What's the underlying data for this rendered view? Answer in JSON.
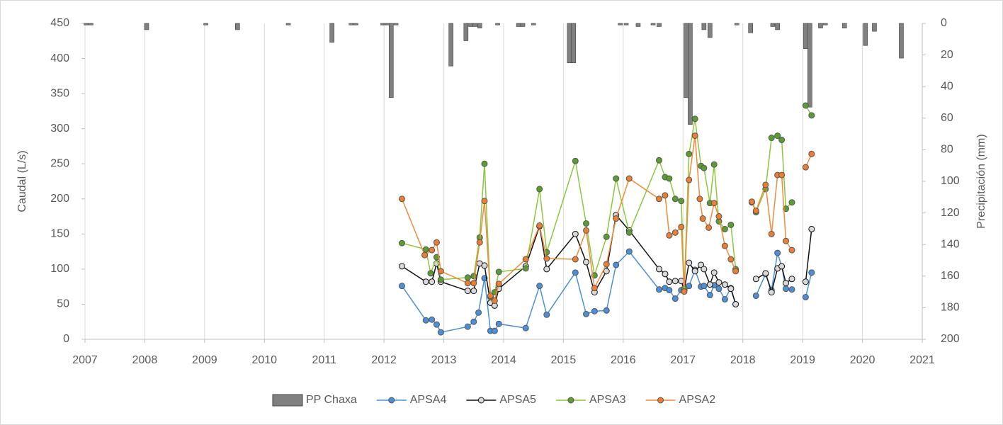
{
  "chart_data": {
    "type": "line",
    "y_label": "Caudal (L/s)",
    "y2_label": "Precipitación (mm)",
    "xlim": [
      2007,
      2021
    ],
    "xticks": [
      2007,
      2008,
      2009,
      2010,
      2011,
      2012,
      2013,
      2014,
      2015,
      2016,
      2017,
      2018,
      2019,
      2020,
      2021
    ],
    "ylim": [
      0,
      450
    ],
    "yticks": [
      0,
      50,
      100,
      150,
      200,
      250,
      300,
      350,
      400,
      450
    ],
    "y2lim": [
      200,
      0
    ],
    "y2ticks": [
      0,
      20,
      40,
      60,
      80,
      100,
      120,
      140,
      160,
      180,
      200
    ],
    "grid": "x",
    "legend": "bottom",
    "series": [
      {
        "name": "PP Chaxa",
        "type": "bar",
        "axis": "y2",
        "color": "#808080",
        "x": [
          2007.02,
          2007.1,
          2008.03,
          2009.02,
          2009.55,
          2010.4,
          2011.13,
          2011.45,
          2011.53,
          2011.98,
          2012.05,
          2012.12,
          2012.2,
          2013.12,
          2013.37,
          2013.45,
          2013.52,
          2013.6,
          2013.9,
          2014.25,
          2014.32,
          2014.5,
          2015.1,
          2015.17,
          2015.95,
          2016.05,
          2016.25,
          2016.5,
          2016.6,
          2017.05,
          2017.12,
          2017.35,
          2017.45,
          2017.9,
          2018.13,
          2018.5,
          2018.58,
          2019.05,
          2019.12,
          2019.3,
          2019.38,
          2019.7,
          2020.05,
          2020.2,
          2020.65
        ],
        "values": [
          1,
          1,
          4,
          1,
          4,
          1,
          12,
          1,
          1,
          1,
          1,
          47,
          1,
          27,
          11,
          2,
          2,
          3,
          1,
          2,
          2,
          1,
          25,
          25,
          1,
          1,
          2,
          1,
          2,
          47,
          64,
          4,
          9,
          1,
          6,
          2,
          4,
          16,
          53,
          3,
          1,
          3,
          14,
          5,
          22
        ]
      },
      {
        "name": "APSA4",
        "color": "#4a90d9",
        "marker_color": "#4a90d9",
        "x": [
          2012.3,
          2012.7,
          2012.8,
          2012.88,
          2012.95,
          2013.4,
          2013.5,
          2013.58,
          2013.68,
          2013.78,
          2013.85,
          2013.92,
          2014.37,
          2014.6,
          2014.72,
          2015.2,
          2015.38,
          2015.52,
          2015.72,
          2015.88,
          2016.1,
          2016.6,
          2016.7,
          2016.77,
          2016.87,
          2016.97,
          2017.02,
          2017.1,
          2017.2,
          2017.3,
          2017.35,
          2017.45,
          2017.52,
          2017.6,
          2017.7,
          2017.8,
          2017.88,
          null,
          2018.22,
          2018.38,
          2018.48,
          2018.58,
          2018.65,
          2018.72,
          2018.82,
          null,
          2019.05,
          2019.15
        ],
        "values": [
          76,
          27,
          28,
          21,
          10,
          18,
          25,
          38,
          87,
          12,
          12,
          22,
          16,
          76,
          35,
          95,
          36,
          40,
          41,
          106,
          125,
          71,
          73,
          70,
          58,
          70,
          72,
          76,
          99,
          75,
          76,
          63,
          77,
          72,
          57,
          73,
          50,
          null,
          62,
          93,
          70,
          123,
          104,
          72,
          71,
          null,
          60,
          95
        ]
      },
      {
        "name": "APSA5",
        "color": "#111111",
        "marker_color": "#d9d9d9",
        "x": [
          2012.3,
          2012.7,
          2012.8,
          2012.88,
          2012.95,
          2013.4,
          2013.5,
          2013.6,
          2013.68,
          2013.78,
          2013.85,
          2013.92,
          2014.37,
          2014.6,
          2014.72,
          2015.2,
          2015.38,
          2015.52,
          2015.72,
          2015.88,
          2016.1,
          2016.6,
          2016.7,
          2016.77,
          2016.87,
          2016.97,
          2017.02,
          2017.1,
          2017.2,
          2017.3,
          2017.35,
          2017.45,
          2017.52,
          2017.6,
          2017.7,
          2017.8,
          2017.88,
          null,
          2018.22,
          2018.38,
          2018.48,
          2018.58,
          2018.65,
          2018.72,
          2018.82,
          null,
          2019.05,
          2019.15
        ],
        "values": [
          104,
          82,
          82,
          108,
          82,
          69,
          69,
          108,
          105,
          52,
          48,
          72,
          104,
          161,
          100,
          150,
          110,
          67,
          97,
          177,
          155,
          100,
          93,
          82,
          83,
          83,
          70,
          109,
          97,
          106,
          100,
          78,
          95,
          81,
          78,
          72,
          50,
          null,
          86,
          94,
          67,
          101,
          104,
          80,
          86,
          null,
          82,
          157
        ]
      },
      {
        "name": "APSA3",
        "color": "#8cc63f",
        "marker_color": "#5a9e32",
        "x": [
          2012.3,
          2012.7,
          2012.78,
          2012.88,
          2012.95,
          2013.4,
          2013.5,
          2013.6,
          2013.68,
          2013.78,
          2013.85,
          2013.92,
          2014.37,
          2014.6,
          2014.72,
          2015.2,
          2015.38,
          2015.52,
          2015.72,
          2015.88,
          2016.1,
          2016.6,
          2016.7,
          2016.77,
          2016.87,
          2016.97,
          2017.02,
          2017.1,
          2017.2,
          2017.3,
          2017.35,
          2017.45,
          2017.52,
          2017.6,
          2017.7,
          2017.8,
          2017.88,
          null,
          2018.15,
          2018.22,
          2018.38,
          2018.48,
          2018.58,
          2018.65,
          2018.72,
          2018.82,
          null,
          2019.05,
          2019.15
        ],
        "values": [
          137,
          128,
          94,
          117,
          85,
          88,
          90,
          145,
          250,
          60,
          67,
          96,
          101,
          214,
          124,
          254,
          165,
          91,
          146,
          229,
          152,
          255,
          231,
          229,
          200,
          197,
          72,
          264,
          314,
          247,
          244,
          194,
          249,
          168,
          157,
          163,
          100,
          null,
          195,
          181,
          214,
          287,
          290,
          284,
          186,
          195,
          null,
          333,
          319
        ]
      },
      {
        "name": "APSA2",
        "color": "#f08a3c",
        "marker_color": "#ed7d31",
        "x": [
          2012.3,
          2012.68,
          2012.8,
          2012.88,
          2012.95,
          2013.4,
          2013.5,
          2013.6,
          2013.68,
          2013.78,
          2013.85,
          2013.92,
          2014.37,
          2014.6,
          2014.72,
          2015.2,
          2015.38,
          2015.52,
          2015.72,
          2015.88,
          2016.1,
          2016.6,
          2016.7,
          2016.77,
          2016.87,
          2016.97,
          2017.02,
          2017.1,
          2017.2,
          2017.28,
          2017.33,
          2017.43,
          2017.52,
          2017.6,
          2017.7,
          2017.8,
          2017.88,
          null,
          2018.15,
          2018.22,
          2018.38,
          2018.48,
          2018.58,
          2018.65,
          2018.72,
          2018.82,
          null,
          2019.05,
          2019.15
        ],
        "values": [
          200,
          120,
          127,
          138,
          97,
          80,
          80,
          138,
          197,
          62,
          55,
          79,
          114,
          162,
          115,
          114,
          155,
          73,
          107,
          172,
          229,
          200,
          205,
          148,
          152,
          160,
          68,
          227,
          290,
          200,
          172,
          159,
          194,
          175,
          133,
          114,
          97,
          null,
          196,
          183,
          220,
          150,
          234,
          234,
          140,
          127,
          null,
          245,
          264
        ]
      }
    ]
  }
}
